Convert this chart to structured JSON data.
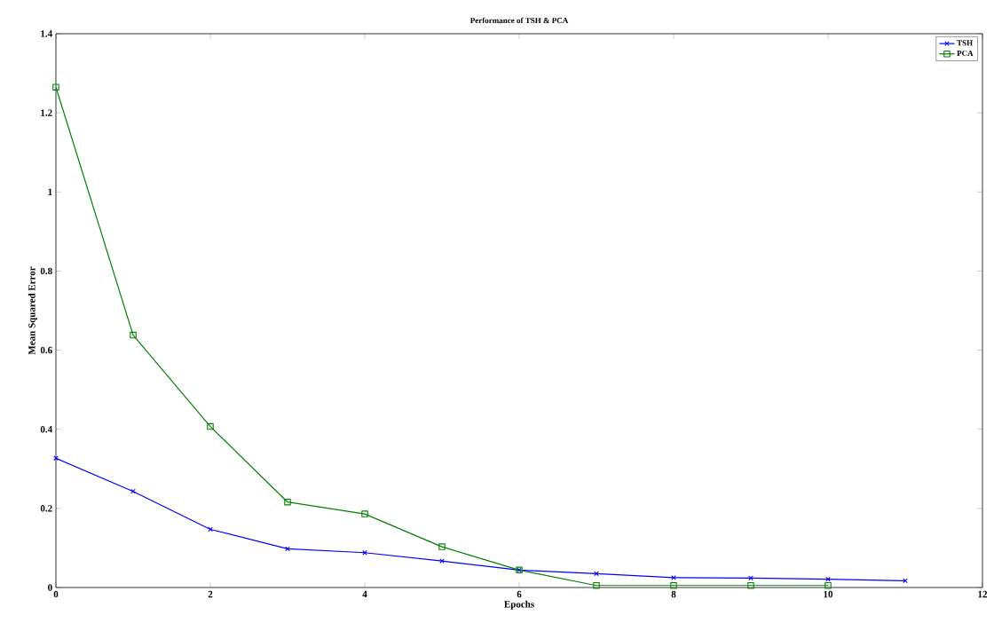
{
  "chart_data": {
    "type": "line",
    "title": "Performance of TSH & PCA",
    "xlabel": "Epochs",
    "ylabel": "Mean Squared Error",
    "xlim": [
      0,
      12
    ],
    "xticks": [
      0,
      2,
      4,
      6,
      8,
      10,
      12
    ],
    "ylim": [
      0,
      1.4
    ],
    "yticks": [
      0,
      0.2,
      0.4,
      0.6,
      0.8,
      1,
      1.2,
      1.4
    ],
    "grid": false,
    "legend": "top right",
    "series": [
      {
        "name": "TSH",
        "color": "#0000ff",
        "marker": "cross",
        "x": [
          0,
          1,
          2,
          3,
          4,
          5,
          6,
          7,
          8,
          9,
          10,
          11
        ],
        "values": [
          0.327,
          0.243,
          0.147,
          0.098,
          0.088,
          0.067,
          0.044,
          0.035,
          0.025,
          0.024,
          0.021,
          0.017
        ]
      },
      {
        "name": "PCA",
        "color": "#008000",
        "marker": "square",
        "x": [
          0,
          1,
          2,
          3,
          4,
          5,
          6,
          7,
          8,
          9,
          10
        ],
        "values": [
          1.265,
          0.638,
          0.407,
          0.216,
          0.186,
          0.103,
          0.044,
          0.005,
          0.005,
          0.005,
          0.005
        ]
      }
    ]
  }
}
